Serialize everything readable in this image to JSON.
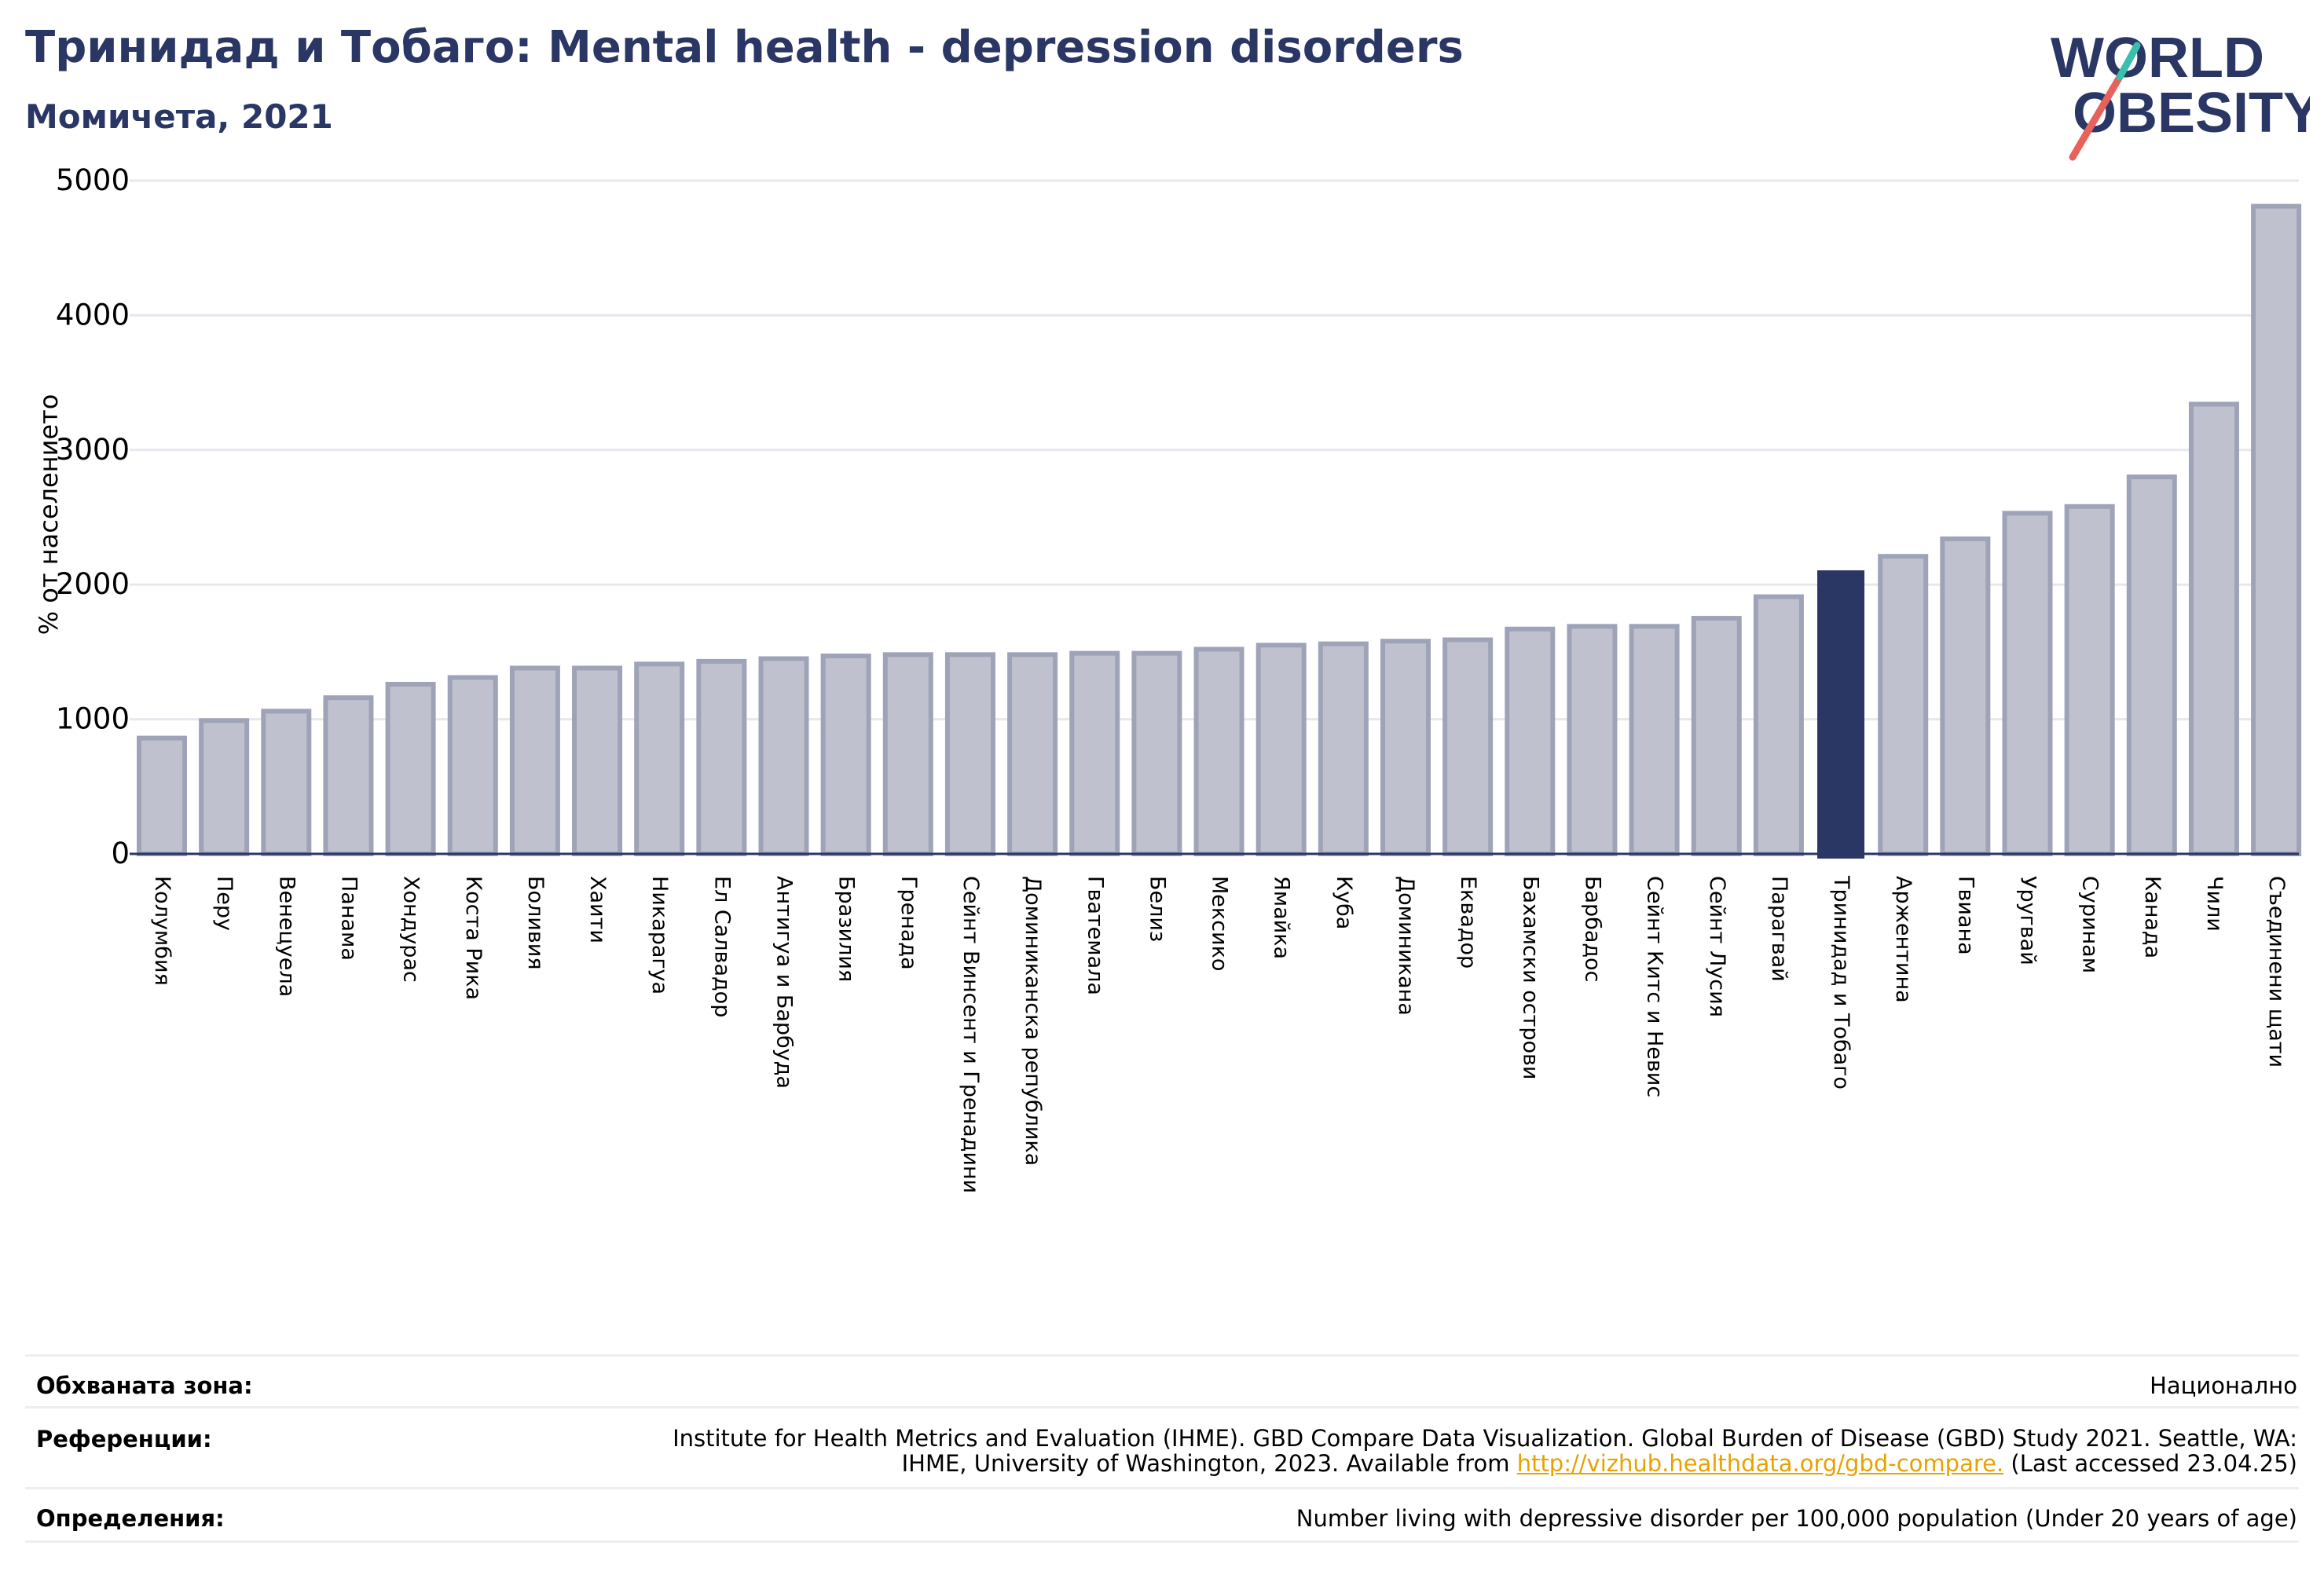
{
  "header": {
    "title": "Тринидад и Тобаго: Mental health - depression disorders",
    "subtitle": "Момичета, 2021"
  },
  "logo": {
    "line1": "WORLD",
    "line2": "OBESITY",
    "icon": "world-obesity-logo"
  },
  "colors": {
    "bar": "#bfc2ce",
    "bar_border": "#9ea3b8",
    "highlight": "#2a3664",
    "text": "#2a3664",
    "logo_red": "#e8615a",
    "logo_teal": "#3bbfad"
  },
  "chart_data": {
    "type": "bar",
    "title": "Тринидад и Тобаго: Mental health - depression disorders",
    "subtitle": "Момичета, 2021",
    "ylabel": "% от населението",
    "xlabel": "",
    "ylim": [
      0,
      5000
    ],
    "yticks": [
      0,
      1000,
      2000,
      3000,
      4000,
      5000
    ],
    "grid": true,
    "highlight": "Тринидад и Тобаго",
    "categories": [
      "Колумбия",
      "Перу",
      "Венецуела",
      "Панама",
      "Хондурас",
      "Коста Рика",
      "Боливия",
      "Хаити",
      "Никарагуа",
      "Ел Салвадор",
      "Антигуа и Барбуда",
      "Бразилия",
      "Гренада",
      "Сейнт Винсент и Гренадини",
      "Доминиканска република",
      "Гватемала",
      "Белиз",
      "Мексико",
      "Ямайка",
      "Куба",
      "Доминикана",
      "Еквадор",
      "Бахамски острови",
      "Барбадос",
      "Сейнт Китс и Невис",
      "Сейнт Лусия",
      "Парагвай",
      "Тринидад и Тобаго",
      "Аржентина",
      "Гвиана",
      "Уругвай",
      "Суринам",
      "Канада",
      "Чили",
      "Съединени щати"
    ],
    "values": [
      860,
      990,
      1060,
      1160,
      1260,
      1310,
      1380,
      1380,
      1410,
      1430,
      1450,
      1470,
      1480,
      1480,
      1480,
      1490,
      1490,
      1520,
      1550,
      1560,
      1580,
      1590,
      1670,
      1690,
      1690,
      1750,
      1910,
      2100,
      2210,
      2340,
      2530,
      2580,
      2800,
      3340,
      4810
    ]
  },
  "footer": {
    "coverage_label": "Обхваната зона:",
    "coverage_value": "Национално",
    "references_label": "Референции:",
    "references_text_1": "Institute for Health Metrics and Evaluation (IHME). GBD Compare Data Visualization. Global Burden of Disease (GBD) Study 2021. Seattle, WA: IHME, University of Washington, 2023. Available from ",
    "references_link": "http://vizhub.healthdata.org/gbd-compare.",
    "references_text_2": " (Last accessed 23.04.25)",
    "definitions_label": "Определения:",
    "definitions_value": "Number living with depressive disorder per 100,000 population (Under 20 years of age)"
  }
}
